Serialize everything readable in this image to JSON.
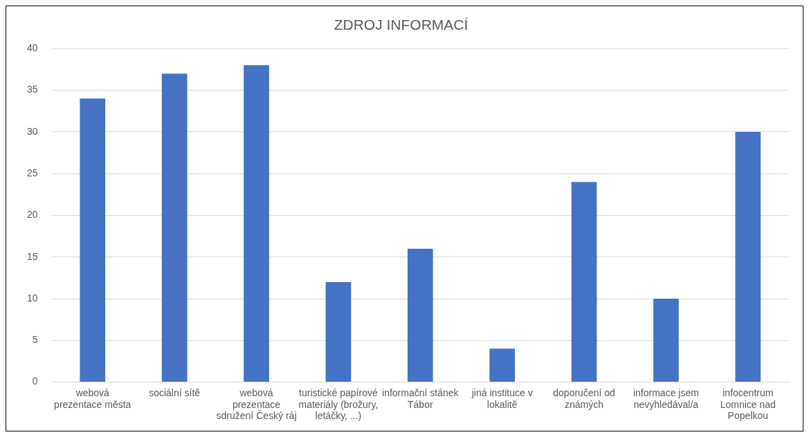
{
  "chart_data": {
    "type": "bar",
    "title": "ZDROJ INFORMACÍ",
    "categories": [
      "webová prezentace města",
      "sociální sítě",
      "webová prezentace sdružení Český ráj",
      "turistické papírové materiály (brožury, letáčky, ...)",
      "informační stánek Tábor",
      "jiná instituce v lokalitě",
      "doporučení od známých",
      "informace jsem nevyhledával/a",
      "infocentrum Lomnice nad Popelkou"
    ],
    "values": [
      34,
      37,
      38,
      12,
      16,
      4,
      24,
      10,
      30
    ],
    "color": "#4472c4",
    "ylim": [
      0,
      40
    ],
    "yticks": [
      0,
      5,
      10,
      15,
      20,
      25,
      30,
      35,
      40
    ],
    "grid": "y",
    "legend": false
  }
}
